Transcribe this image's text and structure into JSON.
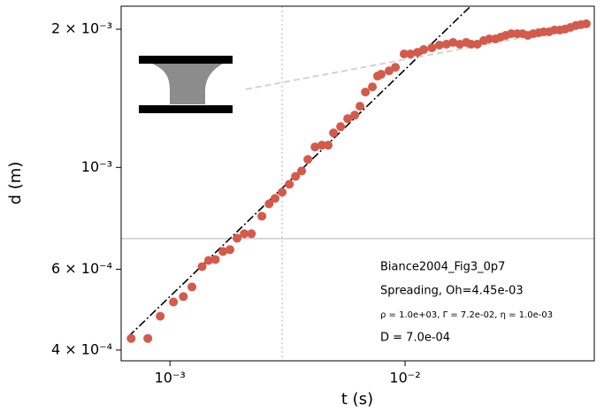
{
  "chart_data": {
    "type": "scatter",
    "x_label": "t (s)",
    "y_label": "d (m)",
    "log_x": true,
    "log_y": true,
    "xlim": [
      0.00062,
      0.0638
    ],
    "ylim": [
      0.000379,
      0.002245
    ],
    "xticks": [
      {
        "value": 0.001,
        "label": "10⁻³"
      },
      {
        "value": 0.01,
        "label": "10⁻²"
      }
    ],
    "yticks": [
      {
        "value": 0.0004,
        "label": "4 × 10⁻⁴"
      },
      {
        "value": 0.0006,
        "label": "6 × 10⁻⁴"
      },
      {
        "value": 0.001,
        "label": "10⁻³"
      },
      {
        "value": 0.002,
        "label": "2 × 10⁻³"
      }
    ],
    "color": "#d45a4b",
    "x": [
      0.000684,
      0.000805,
      0.000909,
      0.001035,
      0.00114,
      0.00124,
      0.00137,
      0.00146,
      0.00156,
      0.00168,
      0.0018,
      0.00193,
      0.00207,
      0.00222,
      0.00246,
      0.00264,
      0.0028,
      0.003,
      0.00322,
      0.00342,
      0.00363,
      0.00386,
      0.00414,
      0.00443,
      0.00471,
      0.00496,
      0.00532,
      0.0057,
      0.00611,
      0.00643,
      0.00678,
      0.00726,
      0.00764,
      0.00791,
      0.00855,
      0.0091,
      0.00991,
      0.01054,
      0.0113,
      0.012,
      0.013,
      0.014,
      0.015,
      0.016,
      0.0171,
      0.0182,
      0.0191,
      0.0203,
      0.0216,
      0.0228,
      0.0242,
      0.0255,
      0.0268,
      0.0283,
      0.03,
      0.0316,
      0.0333,
      0.0351,
      0.037,
      0.0389,
      0.041,
      0.0432,
      0.0455,
      0.0479,
      0.0505,
      0.0532,
      0.056,
      0.059
    ],
    "values": [
      0.000424,
      0.000424,
      0.000474,
      0.000509,
      0.000523,
      0.000549,
      0.000608,
      0.000627,
      0.00063,
      0.000656,
      0.000662,
      0.000701,
      0.000717,
      0.000717,
      0.000783,
      0.000833,
      0.000856,
      0.000883,
      0.000919,
      0.000956,
      0.000982,
      0.001041,
      0.001108,
      0.001118,
      0.001118,
      0.001189,
      0.001227,
      0.001277,
      0.0013,
      0.001359,
      0.001459,
      0.001498,
      0.001581,
      0.001595,
      0.001623,
      0.001652,
      0.001767,
      0.001767,
      0.001782,
      0.001806,
      0.001822,
      0.001847,
      0.001855,
      0.001872,
      0.001855,
      0.001872,
      0.001855,
      0.001855,
      0.001889,
      0.001905,
      0.001905,
      0.001922,
      0.001939,
      0.001956,
      0.001956,
      0.001956,
      0.001939,
      0.001956,
      0.001965,
      0.001974,
      0.001974,
      0.001992,
      0.001992,
      0.002001,
      0.002018,
      0.002037,
      0.002046,
      0.002055
    ],
    "lines": [
      {
        "x": [
          0.000666,
          0.019
        ],
        "y": [
          0.000428,
          0.002245
        ],
        "color": "#000000",
        "style": "dashdot"
      },
      {
        "x": [
          0.0021,
          0.06
        ],
        "y": [
          0.00148,
          0.00204
        ],
        "color": "#d3d3d3",
        "style": "dashed"
      }
    ],
    "hline": {
      "value": 0.0007,
      "color": "#cccccc"
    },
    "vline": {
      "value": 0.003,
      "color": "#cccccc"
    },
    "annotations": [
      "Biance2004_Fig3_0p7",
      "Spreading, Oh=4.45e-03",
      "ρ = 1.0e+03, Γ = 7.2e-02, η = 1.0e-03",
      "D = 7.0e-04"
    ]
  }
}
